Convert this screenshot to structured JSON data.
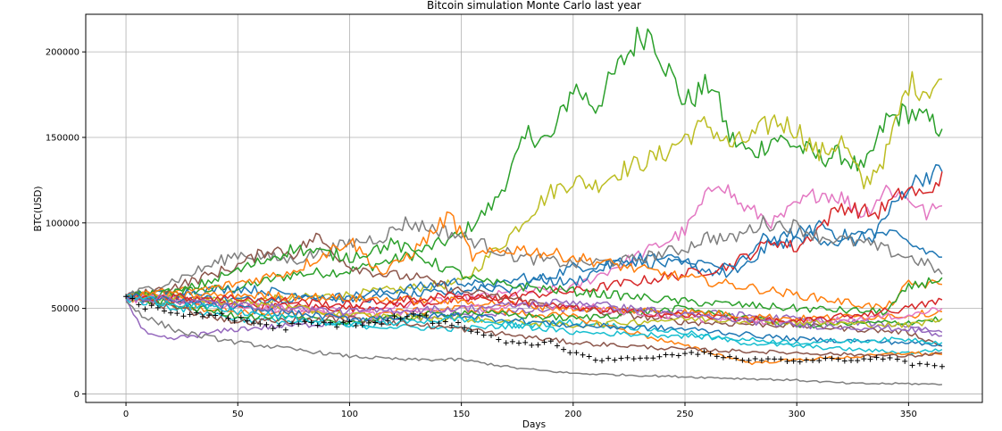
{
  "chart_data": {
    "type": "line",
    "title": "Bitcoin simulation Monte Carlo last year",
    "xlabel": "Days",
    "ylabel": "BTC(USD)",
    "xlim": [
      -18,
      383
    ],
    "ylim": [
      -5000,
      222000
    ],
    "xticks": [
      0,
      50,
      100,
      150,
      200,
      250,
      300,
      350
    ],
    "yticks": [
      0,
      50000,
      100000,
      150000,
      200000
    ],
    "grid": true,
    "series": [
      {
        "color": "#2ca02c",
        "style": "line",
        "x": [
          0,
          25,
          50,
          75,
          100,
          125,
          150,
          165,
          180,
          190,
          200,
          210,
          220,
          230,
          235,
          240,
          250,
          262,
          270,
          280,
          290,
          300,
          310,
          320,
          330,
          340,
          350,
          358,
          365
        ],
        "y": [
          57000,
          60000,
          62000,
          70000,
          72000,
          80000,
          93000,
          112000,
          152000,
          148000,
          180000,
          168000,
          190000,
          210000,
          212000,
          196000,
          170000,
          182000,
          150000,
          140000,
          150000,
          145000,
          138000,
          140000,
          130000,
          160000,
          165000,
          160000,
          155000
        ]
      },
      {
        "color": "#bcbd22",
        "style": "line",
        "x": [
          0,
          50,
          100,
          150,
          170,
          180,
          190,
          200,
          210,
          220,
          230,
          240,
          250,
          260,
          270,
          280,
          290,
          300,
          310,
          320,
          330,
          340,
          350,
          358,
          365
        ],
        "y": [
          57000,
          54000,
          58000,
          65000,
          90000,
          105000,
          118000,
          125000,
          122000,
          130000,
          135000,
          140000,
          150000,
          158000,
          145000,
          150000,
          160000,
          155000,
          140000,
          148000,
          122000,
          140000,
          182000,
          178000,
          184000
        ]
      },
      {
        "color": "#e377c2",
        "style": "line",
        "x": [
          0,
          50,
          100,
          150,
          200,
          220,
          240,
          250,
          265,
          275,
          290,
          300,
          310,
          320,
          330,
          340,
          350,
          358,
          365
        ],
        "y": [
          56000,
          52000,
          48000,
          56000,
          62000,
          75000,
          88000,
          95000,
          126000,
          110000,
          100000,
          110000,
          118000,
          115000,
          105000,
          120000,
          115000,
          105000,
          110000
        ]
      },
      {
        "color": "#1f77b4",
        "style": "line",
        "x": [
          0,
          50,
          100,
          150,
          170,
          200,
          225,
          250,
          270,
          285,
          300,
          310,
          320,
          335,
          350,
          358,
          365
        ],
        "y": [
          58000,
          55000,
          57000,
          66000,
          60000,
          74000,
          78000,
          75000,
          70000,
          90000,
          88000,
          100000,
          92000,
          95000,
          122000,
          128000,
          130000
        ]
      },
      {
        "color": "#d62728",
        "style": "line",
        "x": [
          0,
          50,
          100,
          150,
          200,
          250,
          270,
          290,
          300,
          320,
          335,
          350,
          358,
          365
        ],
        "y": [
          57000,
          52000,
          50000,
          55000,
          60000,
          70000,
          75000,
          90000,
          85000,
          110000,
          105000,
          120000,
          115000,
          130000
        ]
      },
      {
        "color": "#1f77b4",
        "style": "line",
        "x": [
          0,
          50,
          100,
          150,
          175,
          200,
          215,
          230,
          250,
          275,
          290,
          300,
          320,
          340,
          355,
          365
        ],
        "y": [
          57000,
          62000,
          55000,
          60000,
          68000,
          65000,
          75000,
          80000,
          78000,
          72000,
          90000,
          95000,
          88000,
          94000,
          85000,
          80000
        ]
      },
      {
        "color": "#7f7f7f",
        "style": "line",
        "x": [
          0,
          25,
          50,
          75,
          100,
          115,
          125,
          140,
          150,
          175,
          200,
          225,
          250,
          260,
          270,
          285,
          300,
          310,
          330,
          350,
          360,
          365
        ],
        "y": [
          57000,
          68000,
          82000,
          78000,
          88000,
          92000,
          100000,
          96000,
          92000,
          80000,
          76000,
          78000,
          85000,
          92000,
          90000,
          100000,
          98000,
          92000,
          88000,
          80000,
          75000,
          70000
        ]
      },
      {
        "color": "#8c564b",
        "style": "line",
        "x": [
          0,
          25,
          50,
          65,
          75,
          85,
          100,
          115,
          130,
          150,
          175,
          200,
          250,
          300,
          350,
          365
        ],
        "y": [
          56000,
          64000,
          75000,
          85000,
          82000,
          92000,
          75000,
          70000,
          68000,
          60000,
          55000,
          50000,
          42000,
          40000,
          36000,
          28000
        ]
      },
      {
        "color": "#ff7f0e",
        "style": "line",
        "x": [
          0,
          40,
          75,
          100,
          115,
          130,
          145,
          155,
          175,
          200,
          250,
          300,
          320,
          340,
          350,
          365
        ],
        "y": [
          57000,
          62000,
          72000,
          90000,
          70000,
          85000,
          105000,
          80000,
          85000,
          80000,
          68000,
          58000,
          54000,
          50000,
          64000,
          64000
        ]
      },
      {
        "color": "#2ca02c",
        "style": "line",
        "x": [
          0,
          25,
          50,
          75,
          100,
          120,
          140,
          160,
          200,
          250,
          300,
          340,
          350,
          365
        ],
        "y": [
          57000,
          60000,
          72000,
          85000,
          80000,
          88000,
          75000,
          65000,
          60000,
          54000,
          50000,
          48000,
          62000,
          68000
        ]
      },
      {
        "color": "#9467bd",
        "style": "line",
        "x": [
          0,
          5,
          10,
          20,
          50,
          100,
          150,
          200,
          250,
          300,
          350,
          365
        ],
        "y": [
          55000,
          42000,
          34000,
          32000,
          38000,
          42000,
          46000,
          50000,
          48000,
          44000,
          40000,
          36000
        ]
      },
      {
        "color": "#7f7f7f",
        "style": "line",
        "x": [
          0,
          10,
          25,
          50,
          75,
          100,
          125,
          150,
          175,
          200,
          225,
          250,
          275,
          300,
          325,
          350,
          365
        ],
        "y": [
          54000,
          44000,
          36000,
          30000,
          26000,
          22000,
          20000,
          20000,
          15000,
          12000,
          11000,
          10000,
          9000,
          8000,
          6000,
          6000,
          5500
        ]
      },
      {
        "color": "#17becf",
        "style": "line",
        "x": [
          0,
          50,
          100,
          150,
          200,
          250,
          275,
          300,
          325,
          350,
          365
        ],
        "y": [
          56000,
          44000,
          40000,
          38000,
          42000,
          36000,
          30000,
          28000,
          26000,
          24000,
          26000
        ]
      },
      {
        "color": "#ff7f0e",
        "style": "line",
        "x": [
          0,
          50,
          100,
          150,
          200,
          250,
          280,
          300,
          330,
          350,
          365
        ],
        "y": [
          56000,
          48000,
          46000,
          50000,
          45000,
          28000,
          18000,
          20000,
          22000,
          24000,
          23000
        ]
      },
      {
        "color": "#2ca02c",
        "style": "line",
        "x": [
          0,
          50,
          100,
          150,
          200,
          250,
          300,
          350,
          365
        ],
        "y": [
          57000,
          46000,
          42000,
          48000,
          44000,
          50000,
          40000,
          42000,
          44000
        ]
      },
      {
        "color": "#ff7f0e",
        "style": "line",
        "x": [
          0,
          50,
          100,
          150,
          200,
          250,
          300,
          350,
          365
        ],
        "y": [
          57000,
          58000,
          56000,
          54000,
          50000,
          48000,
          44000,
          46000,
          48000
        ]
      },
      {
        "color": "#e377c2",
        "style": "line",
        "x": [
          0,
          50,
          100,
          150,
          200,
          250,
          300,
          350,
          365
        ],
        "y": [
          57000,
          52000,
          46000,
          50000,
          52000,
          44000,
          42000,
          46000,
          50000
        ]
      },
      {
        "color": "#bcbd22",
        "style": "line",
        "x": [
          0,
          50,
          100,
          150,
          200,
          250,
          300,
          350,
          365
        ],
        "y": [
          57000,
          54000,
          46000,
          44000,
          40000,
          44000,
          42000,
          40000,
          44000
        ]
      },
      {
        "color": "#d62728",
        "style": "line",
        "x": [
          0,
          50,
          100,
          150,
          200,
          250,
          300,
          350,
          365
        ],
        "y": [
          57000,
          56000,
          52000,
          58000,
          50000,
          46000,
          42000,
          50000,
          55000
        ]
      },
      {
        "color": "#8c564b",
        "style": "line",
        "x": [
          0,
          50,
          100,
          150,
          200,
          250,
          300,
          350,
          365
        ],
        "y": [
          57000,
          42000,
          44000,
          38000,
          30000,
          26000,
          24000,
          22000,
          24000
        ]
      },
      {
        "color": "#1f77b4",
        "style": "line",
        "x": [
          0,
          50,
          100,
          150,
          200,
          250,
          300,
          350,
          365
        ],
        "y": [
          57000,
          50000,
          44000,
          46000,
          40000,
          38000,
          32000,
          30000,
          28000
        ]
      },
      {
        "color": "#9467bd",
        "style": "line",
        "x": [
          0,
          50,
          100,
          150,
          200,
          250,
          300,
          350,
          365
        ],
        "y": [
          57000,
          52000,
          48000,
          50000,
          54000,
          46000,
          40000,
          38000,
          34000
        ]
      },
      {
        "color": "#17becf",
        "style": "line",
        "x": [
          0,
          50,
          100,
          150,
          200,
          250,
          300,
          350,
          365
        ],
        "y": [
          57000,
          48000,
          40000,
          44000,
          36000,
          34000,
          30000,
          32000,
          30000
        ]
      },
      {
        "color": "#000000",
        "style": "marker",
        "x": [
          0,
          10,
          20,
          30,
          40,
          50,
          60,
          70,
          80,
          90,
          100,
          110,
          120,
          130,
          140,
          150,
          160,
          165,
          170,
          180,
          190,
          200,
          210,
          220,
          230,
          240,
          250,
          260,
          270,
          280,
          290,
          300,
          310,
          320,
          330,
          340,
          345,
          350,
          355,
          360,
          365
        ],
        "y": [
          57000,
          50000,
          48000,
          47000,
          46000,
          44000,
          40000,
          38000,
          42000,
          40000,
          42000,
          41000,
          44000,
          46000,
          42000,
          40000,
          36000,
          34000,
          30000,
          29000,
          30000,
          24000,
          20000,
          20000,
          21000,
          22000,
          23000,
          24000,
          21000,
          20000,
          20000,
          19000,
          20000,
          20000,
          20000,
          21000,
          21000,
          17000,
          17000,
          16500,
          16000
        ]
      }
    ]
  }
}
